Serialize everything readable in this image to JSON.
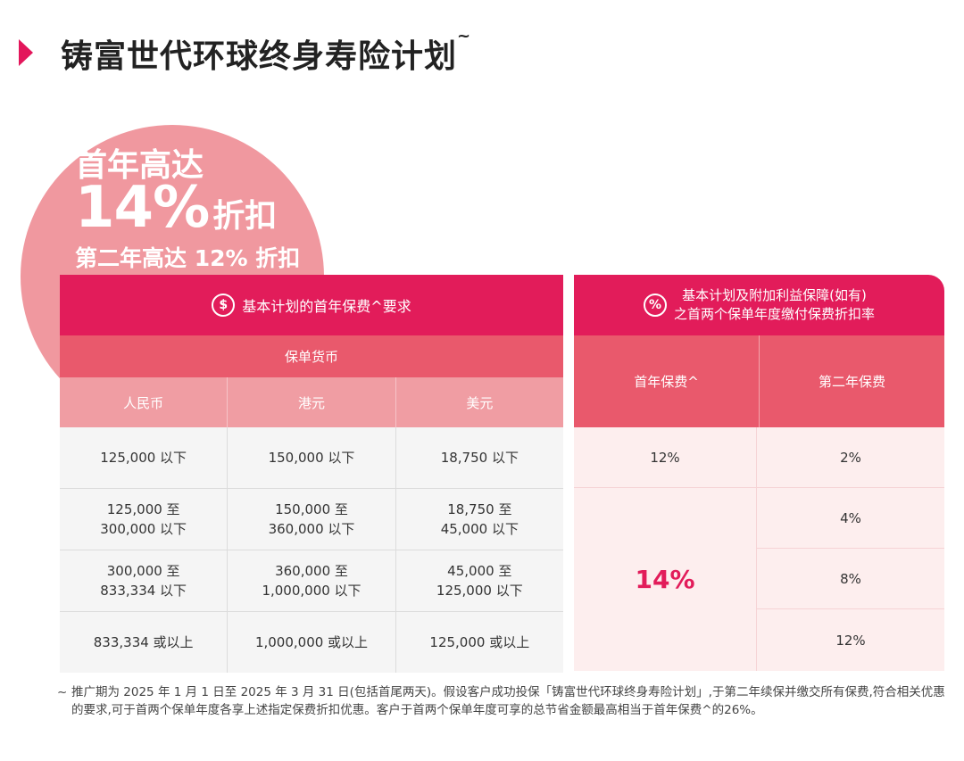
{
  "title": "铸富世代环球终身寿险计划",
  "title_mark": "~",
  "promo": {
    "line1": "首年高达",
    "line2_big": "14%",
    "line2_suffix": "折扣",
    "line3": "第二年高达 12% 折扣"
  },
  "left_table": {
    "icon": "dollar-icon",
    "icon_glyph": "$",
    "header": "基本计划的首年保费^要求",
    "currency_header": "保单货币",
    "currencies": [
      "人民币",
      "港元",
      "美元"
    ],
    "rows": [
      [
        "125,000 以下",
        "150,000 以下",
        "18,750 以下"
      ],
      [
        "125,000 至\n300,000 以下",
        "150,000 至\n360,000 以下",
        "18,750 至\n45,000 以下"
      ],
      [
        "300,000 至\n833,334 以下",
        "360,000 至\n1,000,000 以下",
        "45,000 至\n125,000 以下"
      ],
      [
        "833,334 或以上",
        "1,000,000 或以上",
        "125,000 或以上"
      ]
    ]
  },
  "right_table": {
    "icon": "percent-icon",
    "icon_glyph": "%",
    "header_line1": "基本计划及附加利益保障(如有)",
    "header_line2": "之首两个保单年度缴付保费折扣率",
    "col_first": "首年保费^",
    "col_second": "第二年保费",
    "first_year_rates": [
      "12%",
      "14%"
    ],
    "second_year_rates": [
      "2%",
      "4%",
      "8%",
      "12%"
    ]
  },
  "footnote": {
    "mark": "~",
    "text": "推广期为 2025 年 1 月 1 日至 2025 年 3 月 31 日(包括首尾两天)。假设客户成功投保「铸富世代环球终身寿险计划」,于第二年续保并缴交所有保费,符合相关优惠的要求,可于首两个保单年度各享上述指定保费折扣优惠。客户于首两个保单年度可享的总节省金额最高相当于首年保费^的26%。"
  },
  "colors": {
    "brand": "#e21c5a",
    "header_mid": "#e9596c",
    "header_light": "#f09da3",
    "circle": "#f0989f",
    "row_bg": "#f5f5f5",
    "rate_bg": "#fdeeee"
  }
}
